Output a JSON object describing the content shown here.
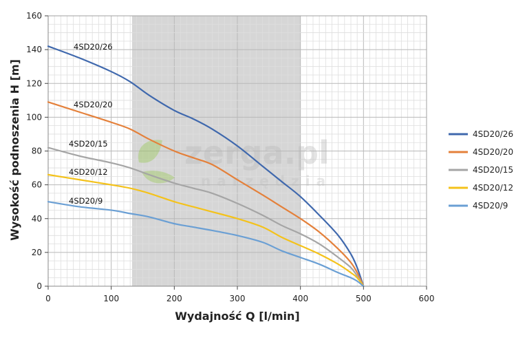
{
  "chart_data": {
    "type": "line",
    "title": "",
    "xlabel": "Wydajność Q [l/min]",
    "ylabel": "Wysokość podnoszenia H [m]",
    "xlim": [
      0,
      600
    ],
    "ylim": [
      0,
      160
    ],
    "x_ticks": [
      "0",
      "100",
      "200",
      "300",
      "400",
      "500",
      "600"
    ],
    "y_ticks": [
      "0",
      "20",
      "40",
      "60",
      "80",
      "100",
      "120",
      "140",
      "160"
    ],
    "grid": true,
    "legend_position": "right",
    "highlight_band": {
      "x_from": 133,
      "x_to": 400,
      "color": "#d6d6d6"
    },
    "series": [
      {
        "name": "4SD20/26",
        "label": "4SD20/26",
        "color": "#3f68ad",
        "x": [
          0,
          50,
          100,
          130,
          160,
          200,
          230,
          260,
          300,
          340,
          370,
          400,
          430,
          460,
          480,
          490,
          500
        ],
        "y": [
          142,
          135,
          127,
          121,
          113,
          104,
          99,
          93,
          83,
          71,
          62,
          53,
          42,
          30,
          19,
          11,
          0
        ]
      },
      {
        "name": "4SD20/20",
        "label": "4SD20/20",
        "color": "#e4803a",
        "x": [
          0,
          50,
          100,
          130,
          160,
          200,
          230,
          260,
          300,
          340,
          370,
          400,
          430,
          460,
          480,
          490,
          500
        ],
        "y": [
          109,
          103,
          97,
          93,
          87,
          80,
          76,
          72,
          63,
          54,
          47,
          40,
          32,
          22,
          14,
          8,
          0
        ]
      },
      {
        "name": "4SD20/15",
        "label": "4SD20/15",
        "color": "#a5a5a5",
        "x": [
          0,
          50,
          100,
          130,
          160,
          200,
          230,
          260,
          300,
          340,
          370,
          400,
          430,
          460,
          480,
          490,
          500
        ],
        "y": [
          82,
          77,
          73,
          70,
          66,
          61,
          58,
          55,
          49,
          42,
          36,
          31,
          25,
          17,
          11,
          6,
          0
        ]
      },
      {
        "name": "4SD20/12",
        "label": "4SD20/12",
        "color": "#f4c21a",
        "x": [
          0,
          50,
          100,
          130,
          160,
          200,
          230,
          260,
          300,
          340,
          370,
          400,
          430,
          460,
          480,
          490,
          500
        ],
        "y": [
          66,
          63,
          60,
          58,
          55,
          50,
          47,
          44,
          40,
          35,
          29,
          24,
          19,
          13,
          8,
          5,
          0
        ]
      },
      {
        "name": "4SD20/9",
        "label": "4SD20/9",
        "color": "#6a9fd4",
        "x": [
          0,
          50,
          100,
          130,
          160,
          200,
          230,
          260,
          300,
          340,
          370,
          400,
          430,
          460,
          480,
          490,
          500
        ],
        "y": [
          50,
          47,
          45,
          43,
          41,
          37,
          35,
          33,
          30,
          26,
          21,
          17,
          13,
          8,
          5,
          3,
          0
        ]
      }
    ]
  },
  "watermark": {
    "brand": "zerga.pl",
    "sub": "narzędzia",
    "icon": "leaf-logo-icon"
  }
}
